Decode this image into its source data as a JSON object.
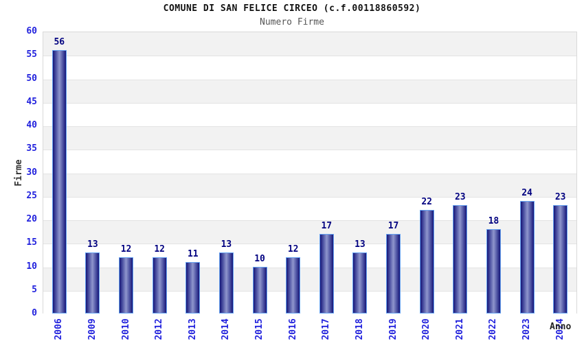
{
  "header": {
    "title": "COMUNE DI SAN FELICE CIRCEO (c.f.00118860592)",
    "subtitle": "Numero Firme"
  },
  "colors": {
    "title": "#111111",
    "subtitle": "#555555",
    "tick_label_blue": "#2222dd",
    "value_label_navy": "#000080",
    "axis_title_gray": "#333333",
    "bar_edge_dark": "#161678",
    "bar_center_light": "#8f96cd",
    "bar_border_lightblue": "#66a3f2",
    "band_gray": "#f2f2f2",
    "band_white": "#ffffff",
    "grid_line": "#e3e3e3",
    "plot_border": "#d9d9d9"
  },
  "chart_data": {
    "type": "bar",
    "title": "COMUNE DI SAN FELICE CIRCEO (c.f.00118860592)",
    "subtitle": "Numero Firme",
    "xlabel": "Anno",
    "ylabel": "Firme",
    "categories": [
      "2006",
      "2009",
      "2010",
      "2012",
      "2013",
      "2014",
      "2015",
      "2016",
      "2017",
      "2018",
      "2019",
      "2020",
      "2021",
      "2022",
      "2023",
      "2024"
    ],
    "values": [
      56,
      13,
      12,
      12,
      11,
      13,
      10,
      12,
      17,
      13,
      17,
      22,
      23,
      18,
      24,
      23
    ],
    "ylim": [
      0,
      60
    ],
    "ytick_step": 5,
    "yticks": [
      0,
      5,
      10,
      15,
      20,
      25,
      30,
      35,
      40,
      45,
      50,
      55,
      60
    ],
    "grid": true,
    "background_bands": "alternating white/gray every 5 units, gray band at top",
    "legend_position": "none",
    "bar_value_labels": true,
    "xtick_rotation_deg": 90
  }
}
